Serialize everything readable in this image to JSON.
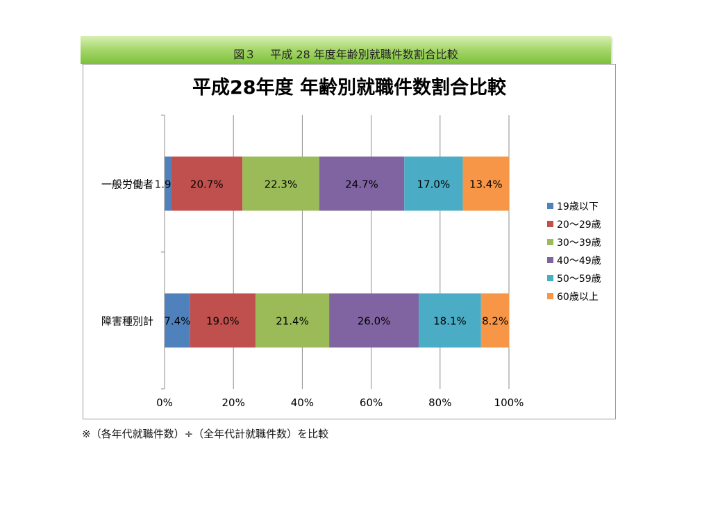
{
  "header": {
    "banner_title": "図３　 平成 28 年度年齢別就職件数割合比較"
  },
  "chart_data": {
    "type": "bar",
    "orientation": "horizontal",
    "stacked": true,
    "title": "平成28年度  年齢別就職件数割合比較",
    "categories": [
      "一般労働者",
      "障害種別計"
    ],
    "series": [
      {
        "name": "19歳以下",
        "values": [
          1.9,
          7.4
        ],
        "labels": [
          "1.9%",
          "7.4%"
        ],
        "color": "#4f81bd"
      },
      {
        "name": "20～29歳",
        "values": [
          20.7,
          19.0
        ],
        "labels": [
          "20.7%",
          "19.0%"
        ],
        "color": "#c0504d"
      },
      {
        "name": "30～39歳",
        "values": [
          22.3,
          21.4
        ],
        "labels": [
          "22.3%",
          "21.4%"
        ],
        "color": "#9bbb59"
      },
      {
        "name": "40～49歳",
        "values": [
          24.7,
          26.0
        ],
        "labels": [
          "24.7%",
          "26.0%"
        ],
        "color": "#8064a2"
      },
      {
        "name": "50～59歳",
        "values": [
          17.0,
          18.1
        ],
        "labels": [
          "17.0%",
          "18.1%"
        ],
        "color": "#4bacc6"
      },
      {
        "name": "60歳以上",
        "values": [
          13.4,
          8.2
        ],
        "labels": [
          "13.4%",
          "8.2%"
        ],
        "color": "#f79646"
      }
    ],
    "xlim": [
      0,
      100
    ],
    "xticks": [
      "0%",
      "20%",
      "40%",
      "60%",
      "80%",
      "100%"
    ],
    "grid": true,
    "legend_position": "right"
  },
  "footnote": "※（各年代就職件数）÷（全年代計就職件数）を比較"
}
